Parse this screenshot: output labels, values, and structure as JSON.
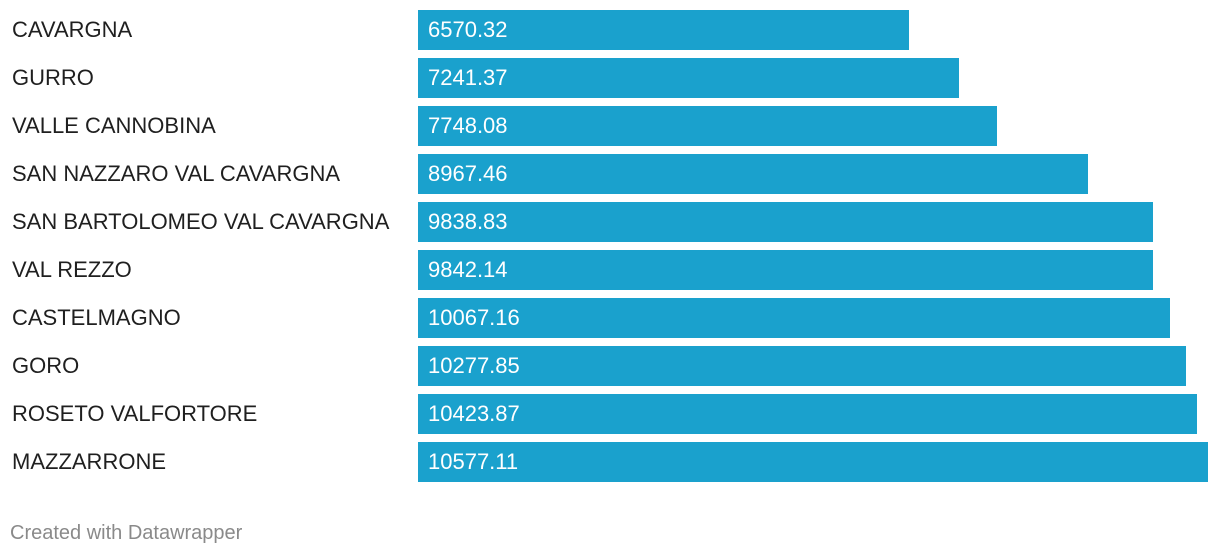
{
  "chart_data": {
    "type": "bar",
    "orientation": "horizontal",
    "categories": [
      "CAVARGNA",
      "GURRO",
      "VALLE CANNOBINA",
      "SAN NAZZARO VAL CAVARGNA",
      "SAN BARTOLOMEO VAL CAVARGNA",
      "VAL REZZO",
      "CASTELMAGNO",
      "GORO",
      "ROSETO VALFORTORE",
      "MAZZARRONE"
    ],
    "values": [
      6570.32,
      7241.37,
      7748.08,
      8967.46,
      9838.83,
      9842.14,
      10067.16,
      10277.85,
      10423.87,
      10577.11
    ],
    "value_labels": [
      "6570.32",
      "7241.37",
      "7748.08",
      "8967.46",
      "9838.83",
      "9842.14",
      "10067.16",
      "10277.85",
      "10423.87",
      "10577.11"
    ],
    "bar_color": "#1aa1cd",
    "value_label_position": "inside-left",
    "grid": false,
    "legend": "none"
  },
  "footer": {
    "credit": "Created with Datawrapper"
  }
}
